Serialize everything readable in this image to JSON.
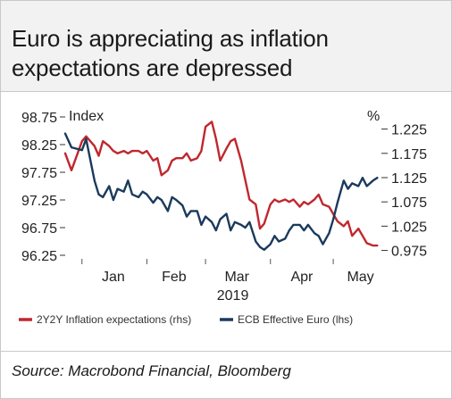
{
  "title": "Euro is appreciating as inflation expectations are depressed",
  "source": "Source: Macrobond Financial, Bloomberg",
  "chart_data": {
    "type": "line",
    "left_axis": {
      "label": "Index",
      "ticks": [
        "98.75",
        "98.25",
        "97.75",
        "97.25",
        "96.75",
        "96.25"
      ],
      "range": [
        96.25,
        98.75
      ]
    },
    "right_axis": {
      "label": "%",
      "ticks": [
        "1.225",
        "1.175",
        "1.125",
        "1.075",
        "1.025",
        "0.975"
      ],
      "range": [
        0.965,
        1.25
      ]
    },
    "x_ticks": [
      "Jan",
      "Feb",
      "Mar",
      "Apr",
      "May"
    ],
    "x_year": "2019",
    "grid": false,
    "legend_position": "bottom",
    "series": [
      {
        "name": "2Y2Y Inflation expectations (rhs)",
        "axis": "right",
        "color": "#c0272d",
        "x": [
          "2018-12-24",
          "2018-12-27",
          "2019-01-01",
          "2019-01-03",
          "2019-01-07",
          "2019-01-09",
          "2019-01-11",
          "2019-01-14",
          "2019-01-16",
          "2019-01-18",
          "2019-01-21",
          "2019-01-23",
          "2019-01-25",
          "2019-01-28",
          "2019-01-30",
          "2019-02-01",
          "2019-02-04",
          "2019-02-06",
          "2019-02-08",
          "2019-02-11",
          "2019-02-13",
          "2019-02-15",
          "2019-02-18",
          "2019-02-20",
          "2019-02-22",
          "2019-02-25",
          "2019-02-27",
          "2019-03-01",
          "2019-03-04",
          "2019-03-06",
          "2019-03-08",
          "2019-03-11",
          "2019-03-13",
          "2019-03-15",
          "2019-03-18",
          "2019-03-20",
          "2019-03-22",
          "2019-03-25",
          "2019-03-27",
          "2019-03-29",
          "2019-04-01",
          "2019-04-03",
          "2019-04-05",
          "2019-04-08",
          "2019-04-10",
          "2019-04-12",
          "2019-04-15",
          "2019-04-17",
          "2019-04-19",
          "2019-04-22",
          "2019-04-24",
          "2019-04-26",
          "2019-04-29",
          "2019-05-01",
          "2019-05-03",
          "2019-05-06",
          "2019-05-08",
          "2019-05-10",
          "2019-05-13",
          "2019-05-15",
          "2019-05-17",
          "2019-05-20",
          "2019-05-22"
        ],
        "y": [
          1.175,
          1.14,
          1.2,
          1.21,
          1.19,
          1.17,
          1.2,
          1.19,
          1.18,
          1.175,
          1.18,
          1.175,
          1.18,
          1.18,
          1.175,
          1.18,
          1.16,
          1.165,
          1.13,
          1.14,
          1.16,
          1.165,
          1.165,
          1.175,
          1.16,
          1.165,
          1.18,
          1.23,
          1.24,
          1.205,
          1.16,
          1.185,
          1.2,
          1.205,
          1.16,
          1.12,
          1.08,
          1.07,
          1.02,
          1.03,
          1.07,
          1.08,
          1.075,
          1.08,
          1.075,
          1.08,
          1.065,
          1.075,
          1.07,
          1.08,
          1.09,
          1.07,
          1.065,
          1.05,
          1.035,
          1.025,
          1.035,
          1.005,
          1.02,
          1.005,
          0.99,
          0.985,
          0.985
        ]
      },
      {
        "name": "ECB Effective Euro (lhs)",
        "axis": "left",
        "color": "#1b3a5c",
        "x": [
          "2018-12-24",
          "2018-12-27",
          "2019-01-01",
          "2019-01-03",
          "2019-01-07",
          "2019-01-09",
          "2019-01-11",
          "2019-01-14",
          "2019-01-16",
          "2019-01-18",
          "2019-01-21",
          "2019-01-23",
          "2019-01-25",
          "2019-01-28",
          "2019-01-30",
          "2019-02-01",
          "2019-02-04",
          "2019-02-06",
          "2019-02-08",
          "2019-02-11",
          "2019-02-13",
          "2019-02-15",
          "2019-02-18",
          "2019-02-20",
          "2019-02-22",
          "2019-02-25",
          "2019-02-27",
          "2019-03-01",
          "2019-03-04",
          "2019-03-06",
          "2019-03-08",
          "2019-03-11",
          "2019-03-13",
          "2019-03-15",
          "2019-03-18",
          "2019-03-20",
          "2019-03-22",
          "2019-03-25",
          "2019-03-27",
          "2019-03-29",
          "2019-04-01",
          "2019-04-03",
          "2019-04-05",
          "2019-04-08",
          "2019-04-10",
          "2019-04-12",
          "2019-04-15",
          "2019-04-17",
          "2019-04-19",
          "2019-04-22",
          "2019-04-24",
          "2019-04-26",
          "2019-04-29",
          "2019-05-01",
          "2019-05-03",
          "2019-05-06",
          "2019-05-08",
          "2019-05-10",
          "2019-05-13",
          "2019-05-15",
          "2019-05-17",
          "2019-05-20",
          "2019-05-22"
        ],
        "y": [
          98.45,
          98.2,
          98.15,
          98.35,
          97.6,
          97.35,
          97.3,
          97.5,
          97.25,
          97.45,
          97.4,
          97.6,
          97.35,
          97.3,
          97.4,
          97.35,
          97.2,
          97.3,
          97.25,
          97.05,
          97.3,
          97.25,
          97.15,
          96.95,
          97.05,
          97.05,
          96.8,
          96.95,
          96.85,
          96.7,
          96.9,
          97.0,
          96.7,
          96.85,
          96.8,
          96.75,
          96.85,
          96.5,
          96.4,
          96.35,
          96.45,
          96.6,
          96.5,
          96.55,
          96.7,
          96.8,
          96.8,
          96.7,
          96.8,
          96.65,
          96.6,
          96.45,
          96.65,
          96.9,
          97.2,
          97.6,
          97.45,
          97.55,
          97.5,
          97.65,
          97.5,
          97.6,
          97.65
        ]
      }
    ]
  }
}
